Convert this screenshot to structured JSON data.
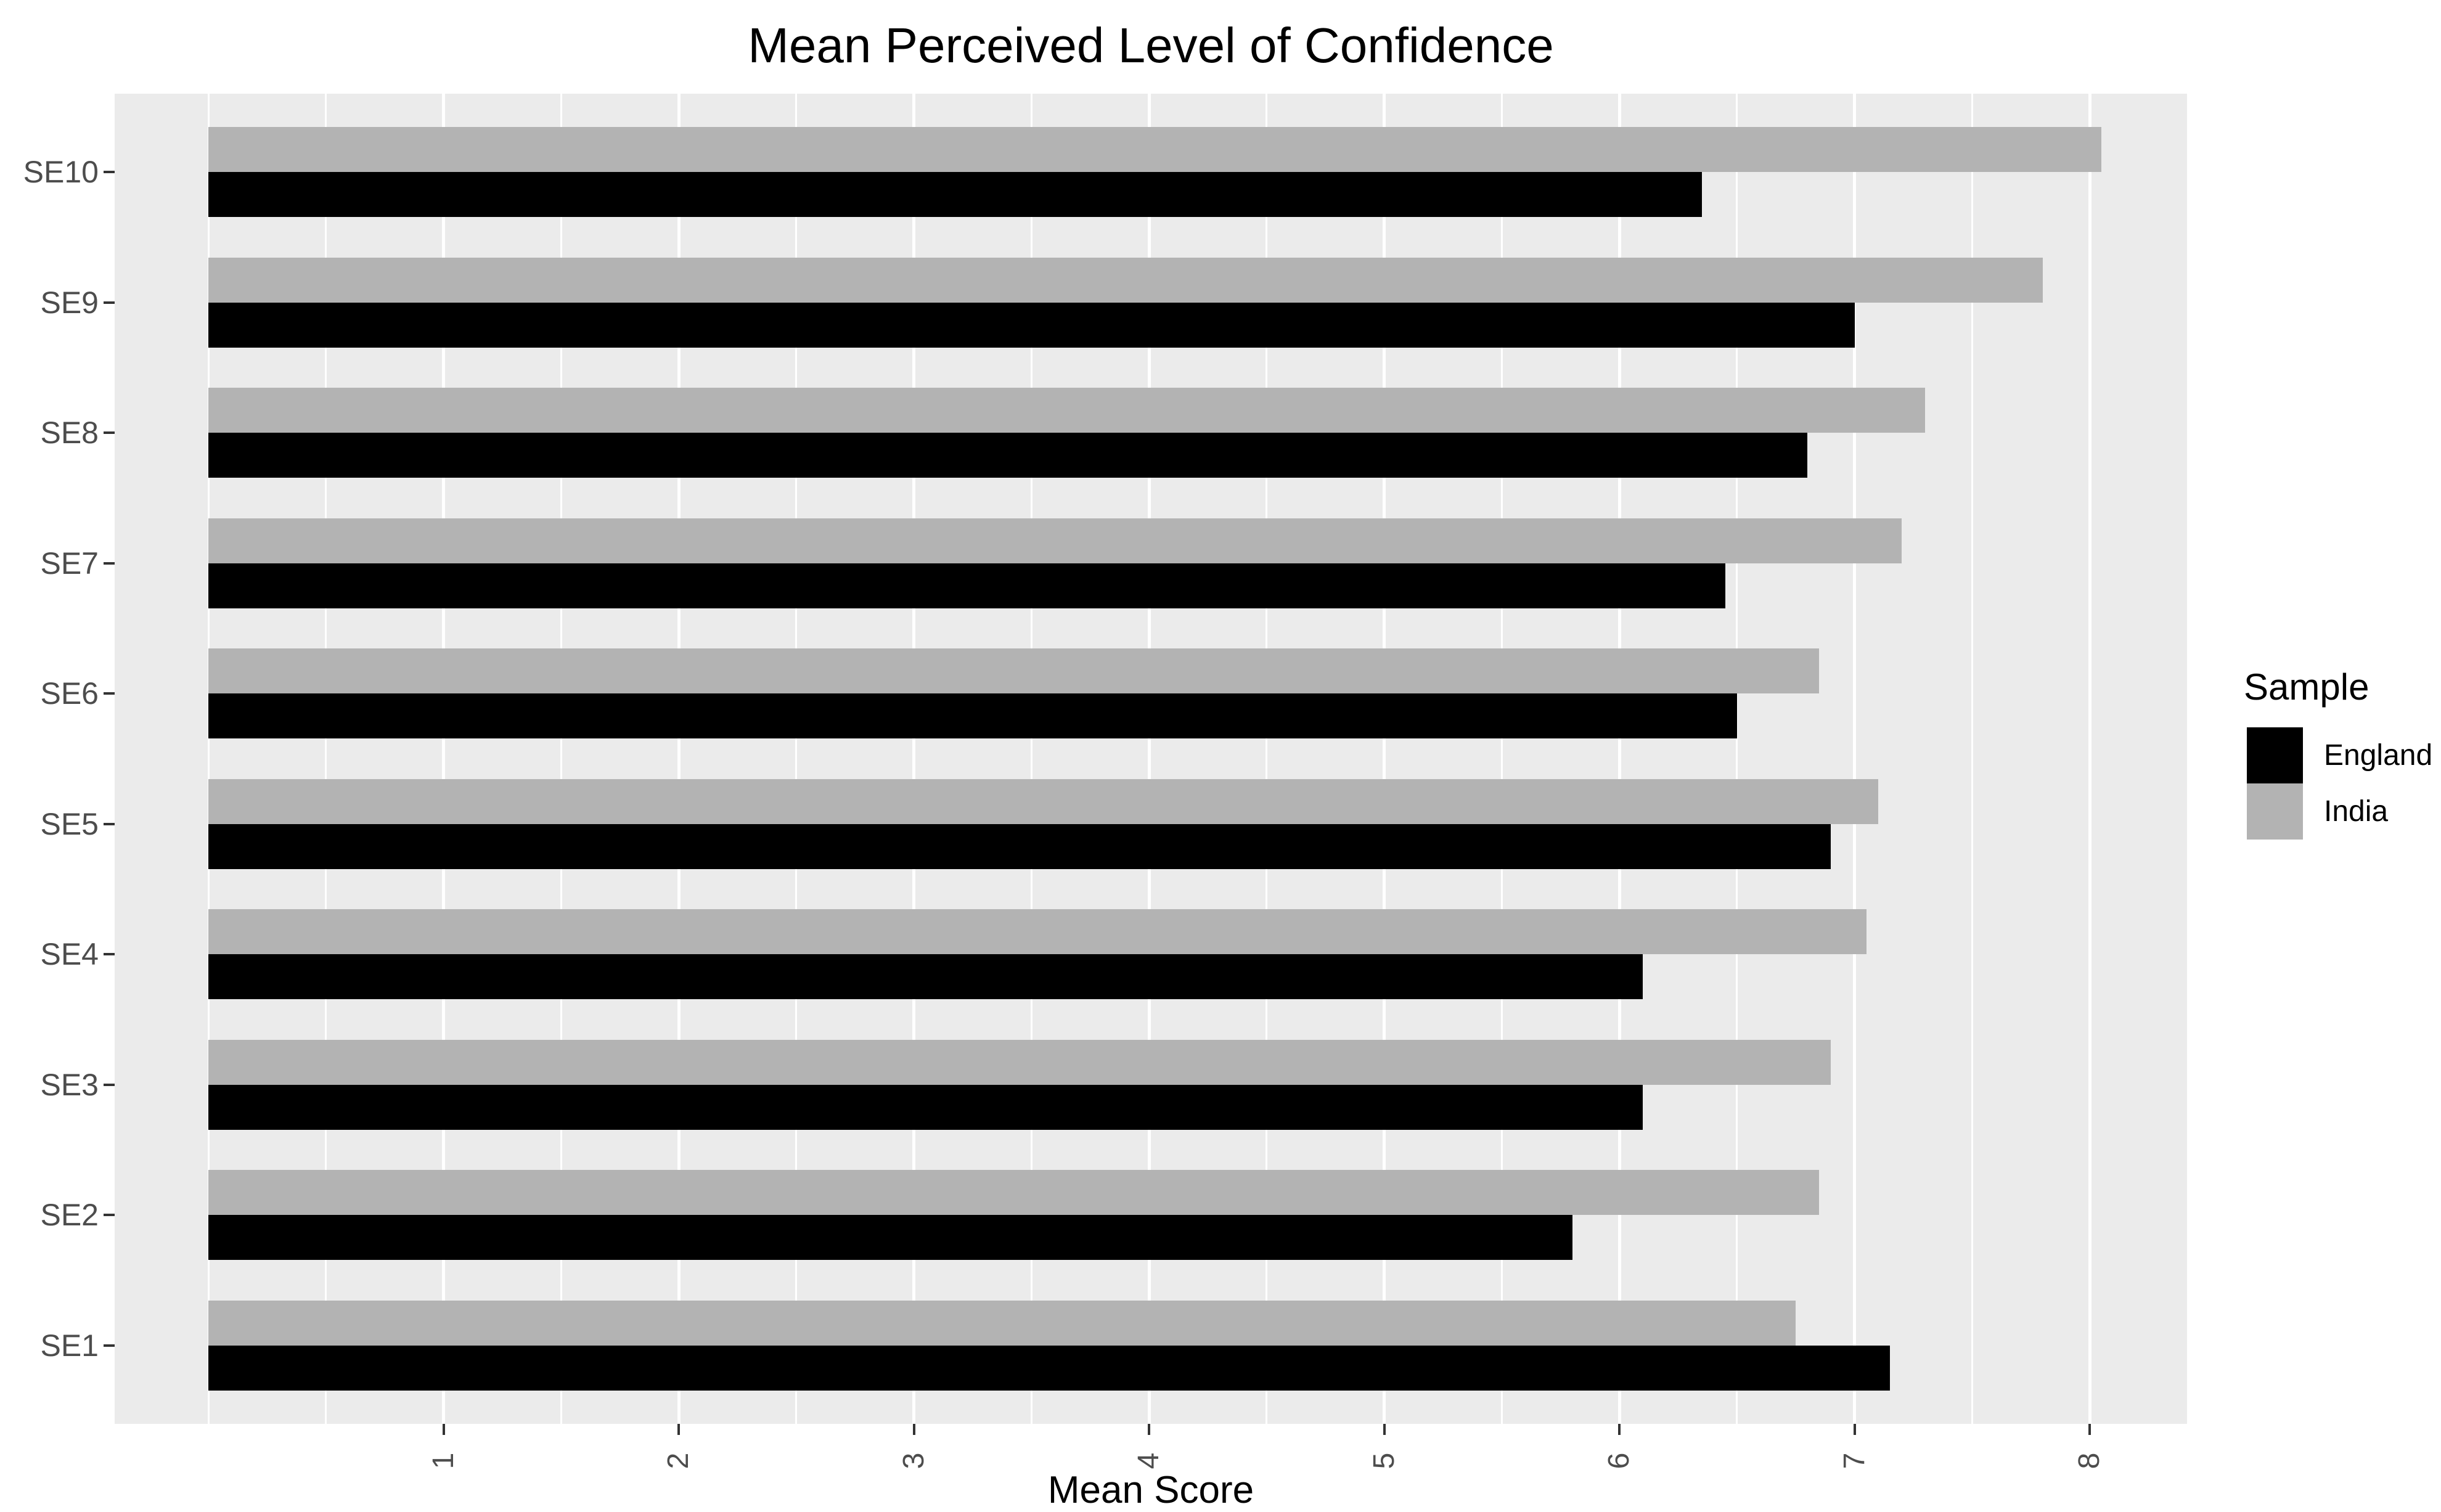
{
  "chart_data": {
    "type": "bar",
    "orientation": "horizontal",
    "title": "Mean Perceived Level of Confidence",
    "xlabel": "Mean Score",
    "ylabel": "",
    "categories": [
      "SE1",
      "SE2",
      "SE3",
      "SE4",
      "SE5",
      "SE6",
      "SE7",
      "SE8",
      "SE9",
      "SE10"
    ],
    "display_order_top_to_bottom": [
      "SE10",
      "SE9",
      "SE8",
      "SE7",
      "SE6",
      "SE5",
      "SE4",
      "SE3",
      "SE2",
      "SE1"
    ],
    "series": [
      {
        "name": "England",
        "color": "#000000",
        "values": [
          7.15,
          5.8,
          6.1,
          6.1,
          6.9,
          6.5,
          6.45,
          6.8,
          7.0,
          6.35
        ]
      },
      {
        "name": "India",
        "color": "#B3B3B3",
        "values": [
          6.75,
          6.85,
          6.9,
          7.05,
          7.1,
          6.85,
          7.2,
          7.3,
          7.8,
          8.05
        ]
      }
    ],
    "x_ticks": [
      1,
      2,
      3,
      4,
      5,
      6,
      7,
      8
    ],
    "x_minor_gridlines": [
      0,
      0.5,
      1.5,
      2.5,
      3.5,
      4.5,
      5.5,
      6.5,
      7.5
    ],
    "xlim": [
      0,
      8.4
    ],
    "grid": true,
    "legend_position": "right",
    "colors": {
      "panel_bg": "#EBEBEB",
      "grid": "#FFFFFF",
      "axis_text": "#4D4D4D",
      "tick_mark": "#333333",
      "title_text": "#000000"
    }
  },
  "legend": {
    "title": "Sample",
    "entries": [
      {
        "label": "England",
        "color": "#000000"
      },
      {
        "label": "India",
        "color": "#B3B3B3"
      }
    ]
  }
}
